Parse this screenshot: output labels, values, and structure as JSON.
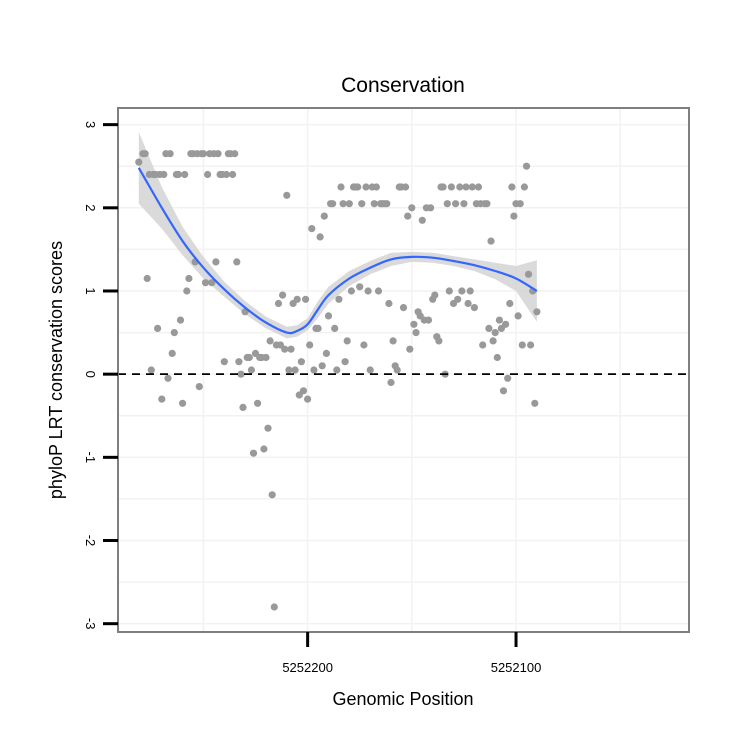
{
  "chart_data": {
    "type": "scatter",
    "title": "Conservation",
    "xlabel": "Genomic Position",
    "ylabel": "phyloP LRT conservation scores",
    "x_reversed": true,
    "xlim": [
      5252291,
      5252017
    ],
    "ylim": [
      -3.1,
      3.2
    ],
    "x_ticks": [
      5252200,
      5252100
    ],
    "x_tick_labels": [
      "5252200",
      "5252100"
    ],
    "y_ticks": [
      -3,
      -2,
      -1,
      0,
      1,
      2,
      3
    ],
    "y_tick_labels": [
      "-3",
      "-2",
      "-1",
      "0",
      "1",
      "2",
      "3"
    ],
    "grid": true,
    "reference_line": {
      "y": 0,
      "style": "dashed",
      "color": "#000000"
    },
    "colors": {
      "points": "#999999",
      "smooth": "#3366FF",
      "band": "#D3D3D3",
      "panel_border": "#7F7F7F",
      "grid": "#F2F2F2"
    },
    "series": [
      {
        "kind": "points",
        "points": [
          [
            5252281,
            2.55
          ],
          [
            5252279,
            2.65
          ],
          [
            5252278,
            2.65
          ],
          [
            5252277,
            1.15
          ],
          [
            5252276,
            2.4
          ],
          [
            5252275,
            0.05
          ],
          [
            5252274,
            2.4
          ],
          [
            5252273,
            2.4
          ],
          [
            5252272,
            0.55
          ],
          [
            5252271,
            2.4
          ],
          [
            5252270,
            -0.3
          ],
          [
            5252269,
            2.4
          ],
          [
            5252268,
            2.65
          ],
          [
            5252267,
            -0.05
          ],
          [
            5252266,
            2.65
          ],
          [
            5252265,
            0.25
          ],
          [
            5252264,
            0.5
          ],
          [
            5252263,
            2.4
          ],
          [
            5252262,
            2.4
          ],
          [
            5252261,
            0.65
          ],
          [
            5252260,
            -0.35
          ],
          [
            5252259,
            2.4
          ],
          [
            5252258,
            1.0
          ],
          [
            5252257,
            1.15
          ],
          [
            5252256,
            2.65
          ],
          [
            5252255,
            2.65
          ],
          [
            5252254,
            1.35
          ],
          [
            5252253,
            2.65
          ],
          [
            5252252,
            -0.15
          ],
          [
            5252251,
            2.65
          ],
          [
            5252250,
            2.65
          ],
          [
            5252249,
            1.1
          ],
          [
            5252248,
            2.4
          ],
          [
            5252247,
            2.65
          ],
          [
            5252246,
            1.1
          ],
          [
            5252245,
            2.65
          ],
          [
            5252244,
            1.35
          ],
          [
            5252243,
            2.65
          ],
          [
            5252242,
            2.4
          ],
          [
            5252241,
            2.4
          ],
          [
            5252240,
            0.15
          ],
          [
            5252239,
            2.4
          ],
          [
            5252238,
            2.65
          ],
          [
            5252237,
            2.65
          ],
          [
            5252236,
            2.4
          ],
          [
            5252235,
            2.65
          ],
          [
            5252234,
            1.35
          ],
          [
            5252233,
            0.15
          ],
          [
            5252232,
            0.0
          ],
          [
            5252231,
            -0.4
          ],
          [
            5252230,
            0.75
          ],
          [
            5252229,
            0.2
          ],
          [
            5252228,
            0.2
          ],
          [
            5252227,
            0.05
          ],
          [
            5252226,
            -0.95
          ],
          [
            5252225,
            0.25
          ],
          [
            5252224,
            -0.35
          ],
          [
            5252223,
            0.2
          ],
          [
            5252222,
            0.2
          ],
          [
            5252221,
            -0.9
          ],
          [
            5252220,
            0.2
          ],
          [
            5252219,
            -0.65
          ],
          [
            5252218,
            0.4
          ],
          [
            5252217,
            -1.45
          ],
          [
            5252216,
            -2.8
          ],
          [
            5252215,
            0.35
          ],
          [
            5252214,
            0.85
          ],
          [
            5252213,
            0.35
          ],
          [
            5252212,
            0.95
          ],
          [
            5252211,
            0.3
          ],
          [
            5252210,
            2.15
          ],
          [
            5252209,
            0.05
          ],
          [
            5252208,
            0.3
          ],
          [
            5252207,
            0.85
          ],
          [
            5252206,
            0.05
          ],
          [
            5252205,
            0.9
          ],
          [
            5252204,
            -0.25
          ],
          [
            5252203,
            0.15
          ],
          [
            5252202,
            -0.2
          ],
          [
            5252201,
            0.9
          ],
          [
            5252200,
            -0.3
          ],
          [
            5252199,
            0.35
          ],
          [
            5252198,
            1.75
          ],
          [
            5252197,
            0.05
          ],
          [
            5252196,
            0.55
          ],
          [
            5252195,
            0.55
          ],
          [
            5252194,
            1.65
          ],
          [
            5252193,
            0.1
          ],
          [
            5252192,
            1.9
          ],
          [
            5252191,
            0.25
          ],
          [
            5252190,
            0.7
          ],
          [
            5252189,
            2.05
          ],
          [
            5252188,
            2.05
          ],
          [
            5252187,
            0.55
          ],
          [
            5252186,
            0.05
          ],
          [
            5252185,
            0.9
          ],
          [
            5252184,
            2.25
          ],
          [
            5252183,
            2.05
          ],
          [
            5252182,
            0.15
          ],
          [
            5252181,
            0.4
          ],
          [
            5252180,
            2.05
          ],
          [
            5252179,
            1.0
          ],
          [
            5252178,
            2.25
          ],
          [
            5252177,
            2.25
          ],
          [
            5252176,
            2.25
          ],
          [
            5252175,
            1.05
          ],
          [
            5252174,
            2.05
          ],
          [
            5252173,
            0.35
          ],
          [
            5252172,
            2.25
          ],
          [
            5252171,
            1.0
          ],
          [
            5252170,
            0.05
          ],
          [
            5252169,
            2.25
          ],
          [
            5252168,
            2.05
          ],
          [
            5252167,
            2.25
          ],
          [
            5252166,
            1.0
          ],
          [
            5252165,
            2.05
          ],
          [
            5252164,
            2.05
          ],
          [
            5252163,
            2.05
          ],
          [
            5252162,
            2.05
          ],
          [
            5252161,
            0.85
          ],
          [
            5252160,
            -0.1
          ],
          [
            5252159,
            0.4
          ],
          [
            5252158,
            0.1
          ],
          [
            5252157,
            0.05
          ],
          [
            5252156,
            2.25
          ],
          [
            5252155,
            2.25
          ],
          [
            5252154,
            0.8
          ],
          [
            5252153,
            2.25
          ],
          [
            5252152,
            1.9
          ],
          [
            5252151,
            0.3
          ],
          [
            5252150,
            2.0
          ],
          [
            5252149,
            0.6
          ],
          [
            5252148,
            0.5
          ],
          [
            5252147,
            0.75
          ],
          [
            5252146,
            0.7
          ],
          [
            5252145,
            1.85
          ],
          [
            5252144,
            0.65
          ],
          [
            5252143,
            2.0
          ],
          [
            5252142,
            0.65
          ],
          [
            5252141,
            2.0
          ],
          [
            5252140,
            0.9
          ],
          [
            5252139,
            0.95
          ],
          [
            5252138,
            0.45
          ],
          [
            5252137,
            0.4
          ],
          [
            5252136,
            2.25
          ],
          [
            5252135,
            2.25
          ],
          [
            5252134,
            0.0
          ],
          [
            5252133,
            2.05
          ],
          [
            5252132,
            1.0
          ],
          [
            5252131,
            2.25
          ],
          [
            5252130,
            0.85
          ],
          [
            5252129,
            2.05
          ],
          [
            5252128,
            0.9
          ],
          [
            5252127,
            2.25
          ],
          [
            5252126,
            1.0
          ],
          [
            5252125,
            2.05
          ],
          [
            5252124,
            2.25
          ],
          [
            5252123,
            0.85
          ],
          [
            5252122,
            1.0
          ],
          [
            5252121,
            2.25
          ],
          [
            5252120,
            0.8
          ],
          [
            5252119,
            2.05
          ],
          [
            5252118,
            2.25
          ],
          [
            5252117,
            2.05
          ],
          [
            5252116,
            0.35
          ],
          [
            5252115,
            2.05
          ],
          [
            5252114,
            2.05
          ],
          [
            5252113,
            0.55
          ],
          [
            5252112,
            1.6
          ],
          [
            5252111,
            0.4
          ],
          [
            5252110,
            0.5
          ],
          [
            5252109,
            0.2
          ],
          [
            5252108,
            0.65
          ],
          [
            5252107,
            0.55
          ],
          [
            5252106,
            -0.2
          ],
          [
            5252105,
            0.6
          ],
          [
            5252104,
            -0.05
          ],
          [
            5252103,
            0.85
          ],
          [
            5252102,
            2.25
          ],
          [
            5252101,
            1.9
          ],
          [
            5252100,
            2.05
          ],
          [
            5252099,
            0.7
          ],
          [
            5252098,
            2.05
          ],
          [
            5252097,
            0.35
          ],
          [
            5252096,
            2.25
          ],
          [
            5252095,
            2.5
          ],
          [
            5252094,
            1.2
          ],
          [
            5252093,
            0.35
          ],
          [
            5252092,
            1.0
          ],
          [
            5252091,
            -0.35
          ],
          [
            5252090,
            0.75
          ]
        ]
      },
      {
        "kind": "smooth",
        "x": [
          5252281,
          5252270,
          5252260,
          5252250,
          5252240,
          5252230,
          5252220,
          5252210,
          5252205,
          5252200,
          5252195,
          5252190,
          5252180,
          5252170,
          5252160,
          5252150,
          5252140,
          5252130,
          5252120,
          5252110,
          5252100,
          5252090
        ],
        "y": [
          2.48,
          2.0,
          1.6,
          1.28,
          1.02,
          0.8,
          0.62,
          0.5,
          0.52,
          0.6,
          0.78,
          0.95,
          1.15,
          1.28,
          1.38,
          1.41,
          1.4,
          1.36,
          1.31,
          1.24,
          1.15,
          1.0
        ],
        "band_lower": [
          2.05,
          1.75,
          1.43,
          1.15,
          0.93,
          0.72,
          0.55,
          0.43,
          0.45,
          0.53,
          0.68,
          0.85,
          1.06,
          1.2,
          1.3,
          1.35,
          1.34,
          1.3,
          1.24,
          1.14,
          1.0,
          0.63
        ],
        "band_upper": [
          2.91,
          2.25,
          1.77,
          1.41,
          1.11,
          0.88,
          0.69,
          0.57,
          0.59,
          0.67,
          0.88,
          1.05,
          1.24,
          1.36,
          1.46,
          1.47,
          1.46,
          1.42,
          1.38,
          1.34,
          1.3,
          1.37
        ]
      }
    ]
  }
}
